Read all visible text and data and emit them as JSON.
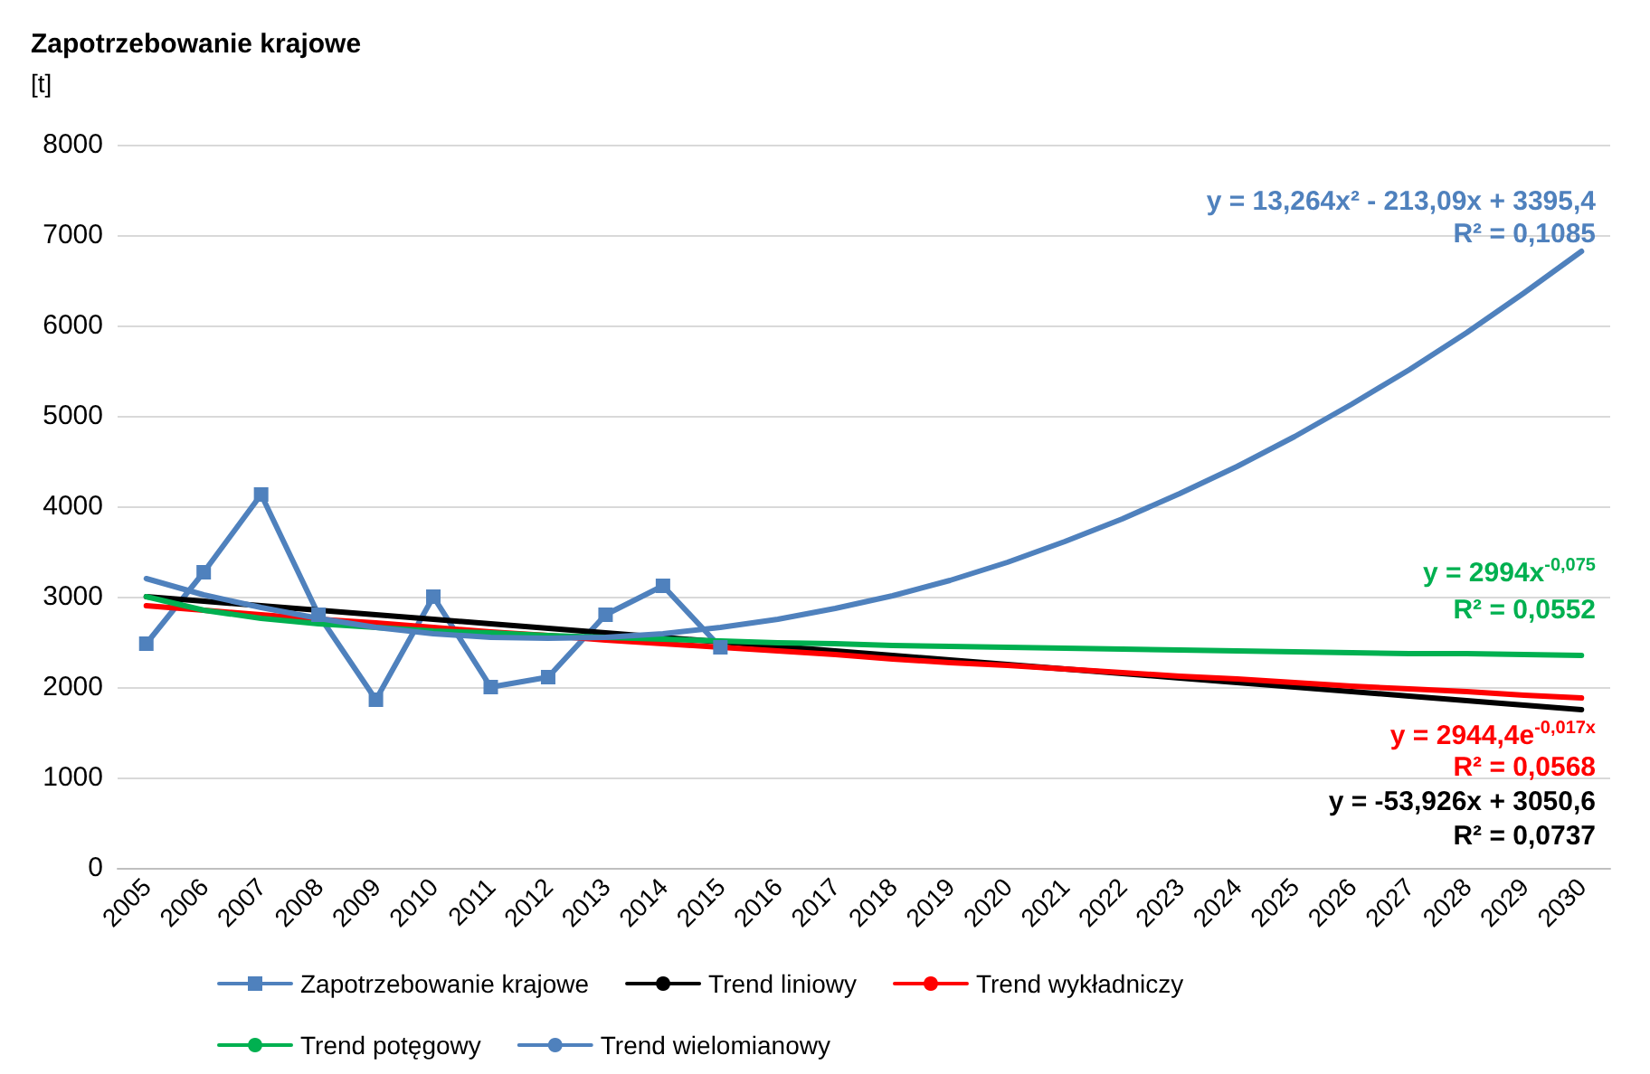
{
  "chart_data": {
    "type": "line",
    "title": "Zapotrzebowanie krajowe",
    "ylabel": "[t]",
    "categories": [
      "2005",
      "2006",
      "2007",
      "2008",
      "2009",
      "2010",
      "2011",
      "2012",
      "2013",
      "2014",
      "2015",
      "2016",
      "2017",
      "2018",
      "2019",
      "2020",
      "2021",
      "2022",
      "2023",
      "2024",
      "2025",
      "2026",
      "2027",
      "2028",
      "2029",
      "2030"
    ],
    "series": [
      {
        "name": "Zapotrzebowanie krajowe",
        "color": "#4f81bd",
        "marker": "square",
        "values": [
          2480,
          3270,
          4130,
          2800,
          1860,
          3000,
          2000,
          2110,
          2800,
          3120,
          2440,
          null,
          null,
          null,
          null,
          null,
          null,
          null,
          null,
          null,
          null,
          null,
          null,
          null,
          null,
          null
        ]
      },
      {
        "name": "Trend liniowy",
        "color": "#000000",
        "marker": "none",
        "values": [
          3000,
          2950,
          2900,
          2850,
          2800,
          2750,
          2700,
          2650,
          2600,
          2550,
          2500,
          2450,
          2400,
          2350,
          2300,
          2250,
          2200,
          2150,
          2100,
          2050,
          2000,
          1950,
          1900,
          1850,
          1800,
          1750
        ]
      },
      {
        "name": "Trend wykładniczy",
        "color": "#ff0000",
        "marker": "none",
        "values": [
          2900,
          2850,
          2800,
          2750,
          2710,
          2660,
          2610,
          2570,
          2520,
          2480,
          2440,
          2400,
          2360,
          2310,
          2270,
          2240,
          2200,
          2160,
          2120,
          2090,
          2050,
          2010,
          1980,
          1950,
          1910,
          1880
        ]
      },
      {
        "name": "Trend potęgowy",
        "color": "#00b050",
        "marker": "none",
        "values": [
          3000,
          2850,
          2760,
          2700,
          2660,
          2620,
          2600,
          2570,
          2550,
          2530,
          2510,
          2490,
          2480,
          2460,
          2450,
          2440,
          2430,
          2420,
          2410,
          2400,
          2390,
          2380,
          2370,
          2370,
          2360,
          2350
        ]
      },
      {
        "name": "Trend wielomianowy",
        "color": "#4f81bd",
        "marker": "none",
        "values": [
          3200,
          3020,
          2880,
          2760,
          2660,
          2590,
          2550,
          2540,
          2550,
          2590,
          2660,
          2750,
          2870,
          3010,
          3180,
          3380,
          3610,
          3860,
          4140,
          4440,
          4770,
          5130,
          5510,
          5920,
          6360,
          6820
        ]
      }
    ],
    "ylim": [
      0,
      8000
    ],
    "yticks": [
      0,
      1000,
      2000,
      3000,
      4000,
      5000,
      6000,
      7000,
      8000
    ],
    "grid": "y",
    "legend": "bottom",
    "annotations": [
      "y = 13,264x² - 213,09x + 3395,4",
      "R² = 0,1085",
      "y = 2994x$^{-0,075}$",
      "R² = 0,0552",
      "y = 2944,4e$^{-0,017x}$",
      "R² = 0,0568",
      "y = -53,926x + 3050,6",
      "R² = 0,0737"
    ]
  }
}
